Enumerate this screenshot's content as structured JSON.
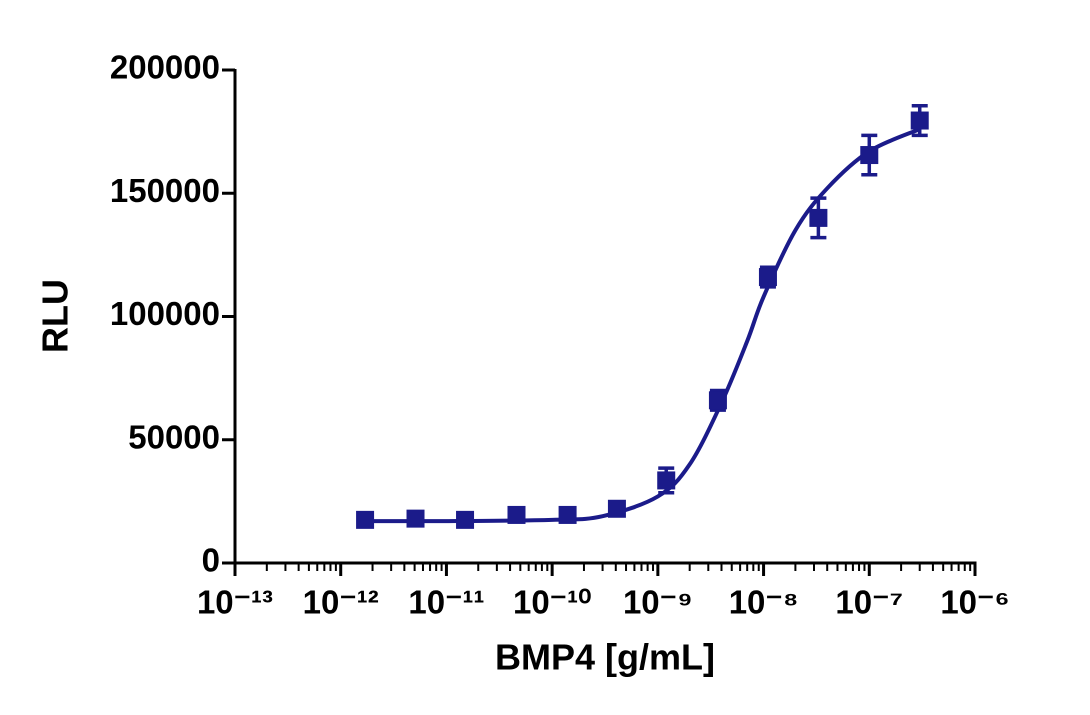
{
  "chart_data": {
    "type": "scatter",
    "x_label": "BMP4 [g/mL]",
    "y_label": "RLU",
    "xscale": "log",
    "xlim": [
      1e-13,
      1e-06
    ],
    "xticks": [
      {
        "value": 1e-13,
        "label": "10⁻¹³"
      },
      {
        "value": 1e-12,
        "label": "10⁻¹²"
      },
      {
        "value": 1e-11,
        "label": "10⁻¹¹"
      },
      {
        "value": 1e-10,
        "label": "10⁻¹⁰"
      },
      {
        "value": 1e-09,
        "label": "10⁻⁹"
      },
      {
        "value": 1e-08,
        "label": "10⁻⁸"
      },
      {
        "value": 1e-07,
        "label": "10⁻⁷"
      },
      {
        "value": 1e-06,
        "label": "10⁻⁶"
      }
    ],
    "xminorticks": [
      2e-13,
      3e-13,
      4e-13,
      5e-13,
      6e-13,
      7e-13,
      8e-13,
      9e-13,
      2e-12,
      3e-12,
      4e-12,
      5e-12,
      6e-12,
      7e-12,
      8e-12,
      9e-12,
      2e-11,
      3e-11,
      4e-11,
      5e-11,
      6e-11,
      7e-11,
      8e-11,
      9e-11,
      2e-10,
      3e-10,
      4e-10,
      5e-10,
      6e-10,
      7e-10,
      8e-10,
      9e-10,
      2e-09,
      3e-09,
      4e-09,
      5e-09,
      6e-09,
      7e-09,
      8e-09,
      9e-09,
      2e-08,
      3e-08,
      4e-08,
      5e-08,
      6e-08,
      7e-08,
      8e-08,
      9e-08,
      2e-07,
      3e-07,
      4e-07,
      5e-07,
      6e-07,
      7e-07,
      8e-07,
      9e-07
    ],
    "ylim": [
      0,
      200000
    ],
    "yticks": [
      0,
      50000,
      100000,
      150000,
      200000
    ],
    "series": [
      {
        "color": "#1b1b8a",
        "x": [
          1.7e-12,
          5.1e-12,
          1.5e-11,
          4.6e-11,
          1.4e-10,
          4.1e-10,
          1.2e-09,
          3.7e-09,
          1.1e-08,
          3.3e-08,
          1e-07,
          3e-07
        ],
        "values": [
          17500,
          18000,
          17500,
          19500,
          19500,
          22000,
          33500,
          66000,
          116000,
          140000,
          165500,
          179500
        ],
        "errors": [
          1000,
          1000,
          1000,
          1000,
          1000,
          1500,
          5000,
          4000,
          4000,
          8000,
          8000,
          6000
        ]
      }
    ],
    "fit": {
      "color": "#1b1b8a",
      "x": [
        1.7e-12,
        1e-11,
        1e-10,
        3e-10,
        1e-09,
        2e-09,
        4e-09,
        7e-09,
        1e-08,
        2e-08,
        4e-08,
        1e-07,
        3e-07
      ],
      "values": [
        17000,
        17000,
        17500,
        19000,
        27000,
        40000,
        65000,
        90000,
        108000,
        135000,
        152000,
        167000,
        176000
      ]
    }
  }
}
